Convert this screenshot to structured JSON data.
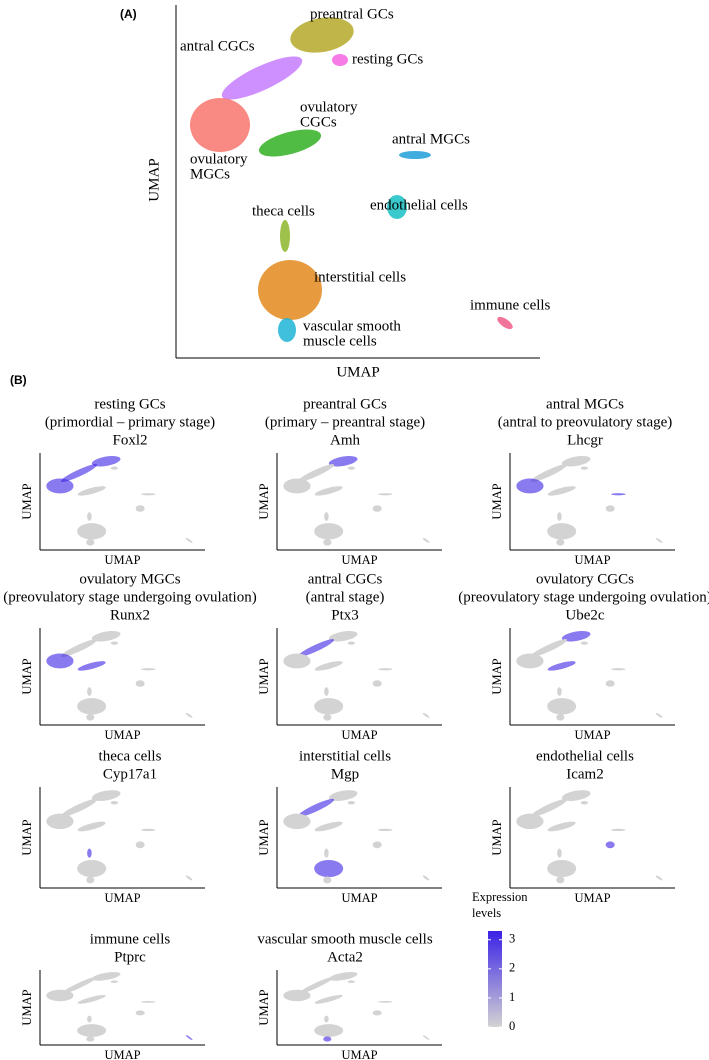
{
  "chart_data": [
    {
      "type": "scatter",
      "panel": "(A)",
      "xlabel": "UMAP",
      "ylabel": "UMAP",
      "clusters": [
        {
          "label_lines": [
            "preantral GCs"
          ],
          "color": "#b5a828"
        },
        {
          "label_lines": [
            "resting GCs"
          ],
          "color": "#f564e3"
        },
        {
          "label_lines": [
            "antral CGCs"
          ],
          "color": "#c77cff"
        },
        {
          "label_lines": [
            "ovulatory",
            "MGCs"
          ],
          "color": "#f8766d"
        },
        {
          "label_lines": [
            "ovulatory",
            "CGCs"
          ],
          "color": "#33b022"
        },
        {
          "label_lines": [
            "antral MGCs"
          ],
          "color": "#1f9fd8"
        },
        {
          "label_lines": [
            "theca cells"
          ],
          "color": "#8db62d"
        },
        {
          "label_lines": [
            "endothelial cells"
          ],
          "color": "#17bfc4"
        },
        {
          "label_lines": [
            "interstitial cells"
          ],
          "color": "#e38a1c"
        },
        {
          "label_lines": [
            "vascular smooth",
            "muscle cells"
          ],
          "color": "#1fb5d6"
        },
        {
          "label_lines": [
            "immune cells"
          ],
          "color": "#ef5d88"
        }
      ]
    },
    {
      "type": "feature",
      "panel": "(B)",
      "low_color": "#d3d3d3",
      "high_color": "#3b22e6",
      "plots": [
        {
          "title_lines": [
            "resting GCs",
            "(primordial – primary stage)",
            "Foxl2"
          ],
          "xlabel": "UMAP",
          "ylabel": "UMAP"
        },
        {
          "title_lines": [
            "preantral GCs",
            "(primary – preantral stage)",
            "Amh"
          ],
          "xlabel": "UMAP",
          "ylabel": "UMAP"
        },
        {
          "title_lines": [
            "antral MGCs",
            "(antral to preovulatory stage)",
            "Lhcgr"
          ],
          "xlabel": "UMAP",
          "ylabel": "UMAP"
        },
        {
          "title_lines": [
            "ovulatory MGCs",
            "(preovulatory stage undergoing ovulation)",
            "Runx2"
          ],
          "xlabel": "UMAP",
          "ylabel": "UMAP"
        },
        {
          "title_lines": [
            "antral CGCs",
            "(antral stage)",
            "Ptx3"
          ],
          "xlabel": "UMAP",
          "ylabel": "UMAP"
        },
        {
          "title_lines": [
            "ovulatory CGCs",
            "(preovulatory stage undergoing ovulation)",
            "Ube2c"
          ],
          "xlabel": "UMAP",
          "ylabel": "UMAP"
        },
        {
          "title_lines": [
            "theca cells",
            "Cyp17a1"
          ],
          "xlabel": "UMAP",
          "ylabel": "UMAP"
        },
        {
          "title_lines": [
            "interstitial cells",
            "Mgp"
          ],
          "xlabel": "UMAP",
          "ylabel": "UMAP"
        },
        {
          "title_lines": [
            "endothelial cells",
            "Icam2"
          ],
          "xlabel": "UMAP",
          "ylabel": "UMAP"
        },
        {
          "title_lines": [
            "immune cells",
            "Ptprc"
          ],
          "xlabel": "UMAP",
          "ylabel": "UMAP"
        },
        {
          "title_lines": [
            "vascular smooth muscle cells",
            "Acta2"
          ],
          "xlabel": "UMAP",
          "ylabel": "UMAP"
        }
      ],
      "colorbar": {
        "title_lines": [
          "Expression",
          "levels"
        ],
        "lim": [
          0,
          3.3
        ],
        "ticks": [
          0,
          1,
          2,
          3
        ]
      }
    }
  ]
}
